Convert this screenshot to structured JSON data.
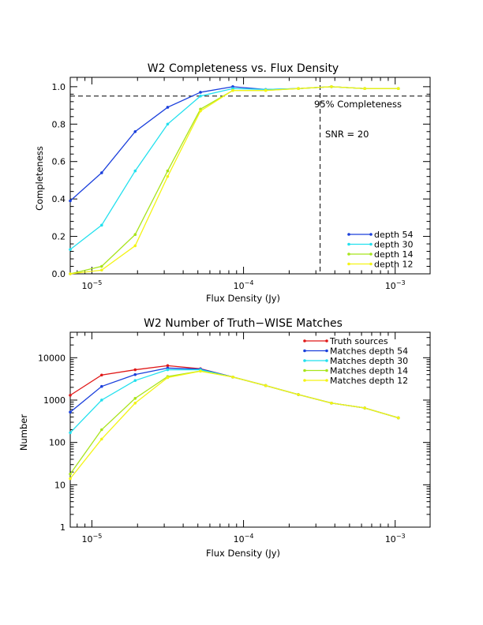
{
  "chart_data": [
    {
      "type": "line",
      "title": "W2 Completeness vs. Flux Density",
      "xlabel": "Flux Density (Jy)",
      "ylabel": "Completeness",
      "xscale": "log",
      "yscale": "linear",
      "xlim": [
        7.2e-06,
        0.0017
      ],
      "ylim": [
        0.0,
        1.05
      ],
      "grid": false,
      "legend_position": "bottom-right",
      "x_ticks": [
        {
          "value": 1e-05,
          "base": "10",
          "exp": "−5"
        },
        {
          "value": 0.0001,
          "base": "10",
          "exp": "−4"
        },
        {
          "value": 0.001,
          "base": "10",
          "exp": "−3"
        }
      ],
      "y_ticks": [
        "0.0",
        "0.2",
        "0.4",
        "0.6",
        "0.8",
        "1.0"
      ],
      "hline": {
        "y": 0.95,
        "label": "95% Completeness"
      },
      "vline": {
        "x": 0.00032,
        "label": "SNR = 20"
      },
      "x": [
        7.2e-06,
        1.16e-05,
        1.93e-05,
        3.16e-05,
        5.2e-05,
        8.5e-05,
        0.00014,
        0.00023,
        0.00038,
        0.00063,
        0.00105
      ],
      "series": [
        {
          "name": "depth 54",
          "color": "#1a3fdc",
          "values": [
            0.39,
            0.54,
            0.76,
            0.89,
            0.97,
            1.0,
            0.985,
            0.99,
            1.0,
            0.99,
            0.99
          ]
        },
        {
          "name": "depth 30",
          "color": "#22e0ee",
          "values": [
            0.13,
            0.26,
            0.55,
            0.8,
            0.95,
            0.99,
            0.985,
            0.99,
            1.0,
            0.99,
            0.99
          ]
        },
        {
          "name": "depth 14",
          "color": "#a8e41c",
          "values": [
            0.0,
            0.04,
            0.21,
            0.55,
            0.88,
            0.98,
            0.98,
            0.99,
            1.0,
            0.99,
            0.99
          ]
        },
        {
          "name": "depth 12",
          "color": "#f4f415",
          "values": [
            0.0,
            0.02,
            0.15,
            0.52,
            0.87,
            0.98,
            0.98,
            0.99,
            1.0,
            0.99,
            0.99
          ]
        }
      ]
    },
    {
      "type": "line",
      "title": "W2 Number of Truth−WISE Matches",
      "xlabel": "Flux Density (Jy)",
      "ylabel": "Number",
      "xscale": "log",
      "yscale": "log",
      "xlim": [
        7.2e-06,
        0.0017
      ],
      "ylim": [
        1,
        40000
      ],
      "grid": false,
      "legend_position": "top-right",
      "x_ticks": [
        {
          "value": 1e-05,
          "base": "10",
          "exp": "−5"
        },
        {
          "value": 0.0001,
          "base": "10",
          "exp": "−4"
        },
        {
          "value": 0.001,
          "base": "10",
          "exp": "−3"
        }
      ],
      "y_ticks": [
        "1",
        "10",
        "100",
        "1000",
        "10000"
      ],
      "x": [
        7.2e-06,
        1.16e-05,
        1.93e-05,
        3.16e-05,
        5.2e-05,
        8.5e-05,
        0.00014,
        0.00023,
        0.00038,
        0.00063,
        0.00105
      ],
      "series": [
        {
          "name": "Truth sources",
          "color": "#e01818",
          "values": [
            1300,
            3900,
            5200,
            6500,
            5500,
            3500,
            2200,
            1350,
            850,
            650,
            380
          ]
        },
        {
          "name": "Matches depth 54",
          "color": "#1a3fdc",
          "values": [
            520,
            2100,
            4000,
            5700,
            5400,
            3500,
            2200,
            1350,
            850,
            650,
            380
          ]
        },
        {
          "name": "Matches depth 30",
          "color": "#22e0ee",
          "values": [
            170,
            1000,
            2900,
            5200,
            5200,
            3500,
            2200,
            1350,
            850,
            650,
            380
          ]
        },
        {
          "name": "Matches depth 14",
          "color": "#a8e41c",
          "values": [
            18,
            200,
            1100,
            3600,
            4850,
            3500,
            2200,
            1350,
            850,
            650,
            380
          ]
        },
        {
          "name": "Matches depth 12",
          "color": "#f4f415",
          "values": [
            14,
            120,
            850,
            3400,
            4800,
            3500,
            2200,
            1350,
            850,
            650,
            380
          ]
        }
      ]
    }
  ]
}
